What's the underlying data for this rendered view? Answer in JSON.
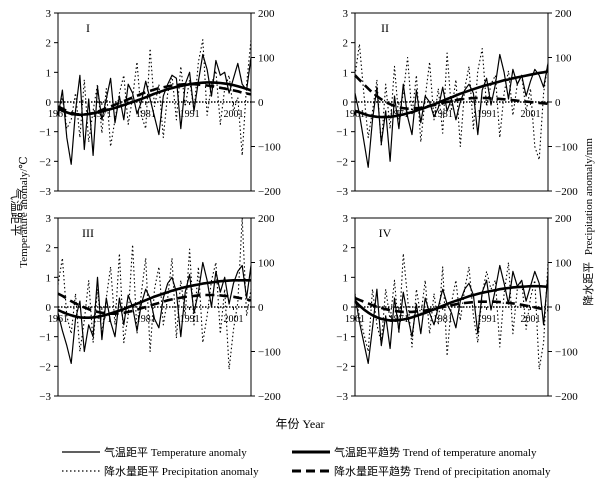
{
  "figure": {
    "x_axis_title": "年份 Year",
    "left_axis_title_cn": "气温距平",
    "left_axis_title_en": "Temperature anomaly/℃",
    "right_axis_title_cn": "降水距平",
    "right_axis_title_en": "Precipitation anomaly/mm"
  },
  "legend": [
    {
      "key": "temp",
      "label": "气温距平 Temperature anomaly",
      "style": "thin-solid"
    },
    {
      "key": "temp_trend",
      "label": "气温距平趋势 Trend of temperature anomaly",
      "style": "thick-solid"
    },
    {
      "key": "precip",
      "label": "降水量距平 Precipitation anomaly",
      "style": "dotted"
    },
    {
      "key": "precip_trend",
      "label": "降水量距平趋势 Trend of precipitation anomaly",
      "style": "thick-dashed"
    }
  ],
  "chart_data": [
    {
      "type": "line",
      "panel": "I",
      "x": [
        1961,
        1962,
        1963,
        1964,
        1965,
        1966,
        1967,
        1968,
        1969,
        1970,
        1971,
        1972,
        1973,
        1974,
        1975,
        1976,
        1977,
        1978,
        1979,
        1980,
        1981,
        1982,
        1983,
        1984,
        1985,
        1986,
        1987,
        1988,
        1989,
        1990,
        1991,
        1992,
        1993,
        1994,
        1995,
        1996,
        1997,
        1998,
        1999,
        2000,
        2001,
        2002,
        2003,
        2004,
        2005
      ],
      "x_ticks": [
        "1961",
        "1971",
        "1981",
        "1991",
        "2001"
      ],
      "ylim_left": [
        -3,
        3
      ],
      "yticks_left": [
        -3,
        -2,
        -1,
        0,
        1,
        2,
        3
      ],
      "ylim_right": [
        -200,
        200
      ],
      "yticks_right": [
        -200,
        -100,
        0,
        100,
        200
      ],
      "series": [
        {
          "key": "temp",
          "axis": "left",
          "values": [
            -0.5,
            0.4,
            -1.2,
            -2.1,
            -0.3,
            0.9,
            -1.6,
            0.1,
            -1.8,
            0.5,
            -0.6,
            0.1,
            0.8,
            -0.7,
            0.2,
            -0.6,
            0.6,
            0.3,
            -0.4,
            0.0,
            0.7,
            0.1,
            -0.5,
            -1.1,
            0.2,
            0.6,
            0.9,
            0.8,
            -0.9,
            0.6,
            1.0,
            -0.3,
            0.7,
            1.6,
            1.1,
            0.2,
            1.4,
            0.9,
            1.0,
            0.3,
            0.8,
            1.3,
            0.6,
            0.4,
            1.5
          ]
        },
        {
          "key": "temp_trend",
          "axis": "left",
          "values": [
            -0.2,
            -0.3,
            -0.35,
            -0.4,
            -0.42,
            -0.43,
            -0.42,
            -0.4,
            -0.38,
            -0.35,
            -0.32,
            -0.28,
            -0.24,
            -0.2,
            -0.15,
            -0.1,
            -0.05,
            0.0,
            0.05,
            0.1,
            0.16,
            0.22,
            0.28,
            0.33,
            0.38,
            0.43,
            0.47,
            0.51,
            0.54,
            0.57,
            0.6,
            0.62,
            0.64,
            0.65,
            0.66,
            0.66,
            0.65,
            0.64,
            0.62,
            0.6,
            0.57,
            0.53,
            0.49,
            0.44,
            0.39
          ]
        },
        {
          "key": "precip",
          "axis": "right",
          "values": [
            -30,
            10,
            -60,
            -40,
            20,
            -80,
            50,
            -90,
            -20,
            40,
            -70,
            30,
            -100,
            -40,
            20,
            60,
            -50,
            10,
            90,
            -30,
            -60,
            120,
            -10,
            40,
            -80,
            20,
            60,
            -40,
            80,
            -10,
            50,
            -20,
            90,
            140,
            -30,
            40,
            70,
            -50,
            30,
            60,
            -20,
            10,
            -120,
            40,
            140
          ]
        },
        {
          "key": "precip_trend",
          "axis": "right",
          "values": [
            -10,
            -15,
            -20,
            -24,
            -27,
            -28,
            -28,
            -27,
            -25,
            -22,
            -18,
            -14,
            -10,
            -6,
            -2,
            2,
            6,
            10,
            14,
            18,
            22,
            25,
            28,
            31,
            33,
            35,
            37,
            38,
            39,
            40,
            40,
            40,
            39,
            38,
            37,
            36,
            34,
            32,
            30,
            28,
            26,
            24,
            21,
            19,
            17
          ]
        }
      ]
    },
    {
      "type": "line",
      "panel": "II",
      "x": [
        1961,
        1962,
        1963,
        1964,
        1965,
        1966,
        1967,
        1968,
        1969,
        1970,
        1971,
        1972,
        1973,
        1974,
        1975,
        1976,
        1977,
        1978,
        1979,
        1980,
        1981,
        1982,
        1983,
        1984,
        1985,
        1986,
        1987,
        1988,
        1989,
        1990,
        1991,
        1992,
        1993,
        1994,
        1995,
        1996,
        1997,
        1998,
        1999,
        2000,
        2001,
        2002,
        2003,
        2004,
        2005
      ],
      "x_ticks": [
        "1961",
        "1971",
        "1981",
        "1991",
        "2001"
      ],
      "ylim_left": [
        -3,
        3
      ],
      "yticks_left": [
        -3,
        -2,
        -1,
        0,
        1,
        2,
        3
      ],
      "ylim_right": [
        -200,
        200
      ],
      "yticks_right": [
        -200,
        -100,
        0,
        100,
        200
      ],
      "series": [
        {
          "key": "temp",
          "axis": "left",
          "values": [
            0.3,
            -0.4,
            -1.3,
            -2.2,
            -0.6,
            0.5,
            -1.4,
            -0.3,
            -2.0,
            0.2,
            -0.9,
            0.6,
            -0.5,
            -1.1,
            0.4,
            -0.7,
            0.2,
            0.0,
            -0.5,
            -0.2,
            0.5,
            -0.3,
            0.1,
            -0.6,
            0.0,
            0.4,
            0.6,
            0.3,
            -1.1,
            0.4,
            0.8,
            -0.1,
            0.6,
            1.6,
            1.0,
            0.1,
            1.1,
            0.6,
            0.9,
            0.2,
            0.7,
            1.1,
            0.9,
            0.5,
            1.3
          ]
        },
        {
          "key": "temp_trend",
          "axis": "left",
          "values": [
            -0.3,
            -0.35,
            -0.4,
            -0.45,
            -0.48,
            -0.5,
            -0.51,
            -0.51,
            -0.5,
            -0.48,
            -0.45,
            -0.42,
            -0.38,
            -0.34,
            -0.29,
            -0.24,
            -0.19,
            -0.13,
            -0.08,
            -0.02,
            0.04,
            0.1,
            0.16,
            0.22,
            0.28,
            0.33,
            0.38,
            0.43,
            0.48,
            0.53,
            0.57,
            0.61,
            0.65,
            0.69,
            0.73,
            0.76,
            0.8,
            0.83,
            0.86,
            0.89,
            0.92,
            0.95,
            0.98,
            1.0,
            1.03
          ]
        },
        {
          "key": "precip",
          "axis": "right",
          "values": [
            60,
            130,
            20,
            -80,
            -20,
            50,
            -100,
            40,
            -60,
            80,
            -40,
            20,
            100,
            -30,
            60,
            -90,
            10,
            90,
            -40,
            30,
            -70,
            110,
            -20,
            50,
            -100,
            30,
            80,
            -60,
            70,
            120,
            -10,
            40,
            60,
            -80,
            20,
            70,
            -30,
            40,
            60,
            -20,
            30,
            -100,
            -130,
            20,
            90
          ]
        },
        {
          "key": "precip_trend",
          "axis": "right",
          "values": [
            60,
            50,
            40,
            30,
            21,
            13,
            6,
            0,
            -5,
            -9,
            -12,
            -14,
            -15,
            -15,
            -14,
            -13,
            -11,
            -9,
            -7,
            -4,
            -2,
            0,
            2,
            4,
            6,
            7,
            8,
            9,
            9,
            9,
            9,
            8,
            8,
            7,
            6,
            5,
            4,
            3,
            2,
            1,
            0,
            -1,
            -2,
            -3,
            -4
          ]
        }
      ]
    },
    {
      "type": "line",
      "panel": "III",
      "x": [
        1961,
        1962,
        1963,
        1964,
        1965,
        1966,
        1967,
        1968,
        1969,
        1970,
        1971,
        1972,
        1973,
        1974,
        1975,
        1976,
        1977,
        1978,
        1979,
        1980,
        1981,
        1982,
        1983,
        1984,
        1985,
        1986,
        1987,
        1988,
        1989,
        1990,
        1991,
        1992,
        1993,
        1994,
        1995,
        1996,
        1997,
        1998,
        1999,
        2000,
        2001,
        2002,
        2003,
        2004,
        2005
      ],
      "x_ticks": [
        "1961",
        "1971",
        "1981",
        "1991",
        "2001"
      ],
      "ylim_left": [
        -3,
        3
      ],
      "yticks_left": [
        -3,
        -2,
        -1,
        0,
        1,
        2,
        3
      ],
      "ylim_right": [
        -200,
        200
      ],
      "yticks_right": [
        -200,
        -100,
        0,
        100,
        200
      ],
      "series": [
        {
          "key": "temp",
          "axis": "left",
          "values": [
            -0.2,
            -0.8,
            -1.3,
            -1.9,
            -0.4,
            0.2,
            -1.5,
            -0.6,
            -1.0,
            1.0,
            -1.1,
            0.3,
            -0.5,
            -1.0,
            0.3,
            -0.6,
            0.4,
            0.0,
            -0.8,
            0.1,
            0.6,
            0.3,
            -0.4,
            -0.7,
            0.3,
            0.8,
            1.0,
            0.5,
            -1.0,
            0.5,
            1.1,
            -0.2,
            0.5,
            1.5,
            0.9,
            0.0,
            1.2,
            0.5,
            1.0,
            0.1,
            0.8,
            1.2,
            1.4,
            0.3,
            1.4
          ]
        },
        {
          "key": "temp_trend",
          "axis": "left",
          "values": [
            -0.1,
            -0.17,
            -0.23,
            -0.28,
            -0.32,
            -0.35,
            -0.36,
            -0.36,
            -0.35,
            -0.33,
            -0.3,
            -0.26,
            -0.22,
            -0.17,
            -0.12,
            -0.07,
            -0.01,
            0.05,
            0.11,
            0.17,
            0.23,
            0.29,
            0.35,
            0.4,
            0.45,
            0.5,
            0.55,
            0.59,
            0.63,
            0.67,
            0.7,
            0.73,
            0.76,
            0.79,
            0.81,
            0.83,
            0.85,
            0.87,
            0.88,
            0.89,
            0.9,
            0.9,
            0.9,
            0.9,
            0.9
          ]
        },
        {
          "key": "precip",
          "axis": "right",
          "values": [
            50,
            110,
            -20,
            -60,
            30,
            -100,
            -30,
            60,
            -80,
            40,
            -60,
            20,
            90,
            -40,
            120,
            -80,
            -20,
            140,
            -60,
            30,
            110,
            -100,
            40,
            90,
            -40,
            20,
            110,
            -70,
            60,
            -20,
            130,
            -40,
            90,
            -80,
            -20,
            60,
            100,
            -60,
            40,
            -140,
            -50,
            10,
            200,
            -20,
            40
          ]
        },
        {
          "key": "precip_trend",
          "axis": "right",
          "values": [
            30,
            25,
            19,
            13,
            8,
            3,
            -1,
            -5,
            -8,
            -11,
            -13,
            -14,
            -15,
            -15,
            -14,
            -13,
            -11,
            -9,
            -6,
            -3,
            0,
            3,
            6,
            9,
            12,
            15,
            17,
            19,
            21,
            23,
            24,
            25,
            26,
            27,
            27,
            27,
            27,
            26,
            25,
            24,
            23,
            21,
            19,
            17,
            15
          ]
        }
      ]
    },
    {
      "type": "line",
      "panel": "IV",
      "x": [
        1961,
        1962,
        1963,
        1964,
        1965,
        1966,
        1967,
        1968,
        1969,
        1970,
        1971,
        1972,
        1973,
        1974,
        1975,
        1976,
        1977,
        1978,
        1979,
        1980,
        1981,
        1982,
        1983,
        1984,
        1985,
        1986,
        1987,
        1988,
        1989,
        1990,
        1991,
        1992,
        1993,
        1994,
        1995,
        1996,
        1997,
        1998,
        1999,
        2000,
        2001,
        2002,
        2003,
        2004,
        2005
      ],
      "x_ticks": [
        "1961",
        "1971",
        "1981",
        "1991",
        "2001"
      ],
      "ylim_left": [
        -3,
        3
      ],
      "yticks_left": [
        -3,
        -2,
        -1,
        0,
        1,
        2,
        3
      ],
      "ylim_right": [
        -200,
        200
      ],
      "yticks_right": [
        -200,
        -100,
        0,
        100,
        200
      ],
      "series": [
        {
          "key": "temp",
          "axis": "left",
          "values": [
            0.4,
            -0.5,
            -1.2,
            -1.9,
            -0.7,
            0.6,
            -1.3,
            -0.3,
            -1.4,
            0.3,
            -0.8,
            0.5,
            -0.3,
            -1.0,
            0.1,
            -0.9,
            0.3,
            -0.2,
            -0.6,
            0.0,
            0.6,
            0.1,
            -0.2,
            -0.7,
            0.2,
            0.6,
            0.8,
            0.4,
            -0.9,
            0.5,
            0.9,
            -0.1,
            0.6,
            1.4,
            0.8,
            0.1,
            1.2,
            0.7,
            0.9,
            0.2,
            0.7,
            1.2,
            0.8,
            -0.6,
            1.1
          ]
        },
        {
          "key": "temp_trend",
          "axis": "left",
          "values": [
            0.2,
            0.05,
            -0.08,
            -0.19,
            -0.28,
            -0.35,
            -0.4,
            -0.43,
            -0.45,
            -0.45,
            -0.44,
            -0.42,
            -0.39,
            -0.35,
            -0.3,
            -0.25,
            -0.2,
            -0.14,
            -0.08,
            -0.02,
            0.04,
            0.1,
            0.16,
            0.21,
            0.26,
            0.31,
            0.36,
            0.4,
            0.44,
            0.48,
            0.51,
            0.54,
            0.57,
            0.6,
            0.62,
            0.64,
            0.66,
            0.67,
            0.68,
            0.69,
            0.7,
            0.7,
            0.7,
            0.69,
            0.68
          ]
        },
        {
          "key": "precip",
          "axis": "right",
          "values": [
            30,
            -20,
            -60,
            -100,
            40,
            -40,
            -80,
            40,
            -30,
            60,
            -60,
            120,
            20,
            -90,
            40,
            -20,
            60,
            -60,
            30,
            -40,
            90,
            -110,
            10,
            60,
            -30,
            40,
            90,
            -20,
            -80,
            30,
            80,
            40,
            60,
            -90,
            30,
            100,
            -60,
            40,
            60,
            -50,
            20,
            60,
            -140,
            -80,
            100
          ]
        },
        {
          "key": "precip_trend",
          "axis": "right",
          "values": [
            20,
            16,
            12,
            8,
            4,
            1,
            -2,
            -5,
            -7,
            -9,
            -10,
            -11,
            -11,
            -11,
            -10,
            -9,
            -8,
            -6,
            -4,
            -2,
            0,
            2,
            4,
            6,
            8,
            9,
            10,
            11,
            12,
            12,
            12,
            12,
            12,
            11,
            10,
            9,
            8,
            7,
            5,
            3,
            1,
            -1,
            -3,
            -5,
            -7
          ]
        }
      ]
    }
  ]
}
